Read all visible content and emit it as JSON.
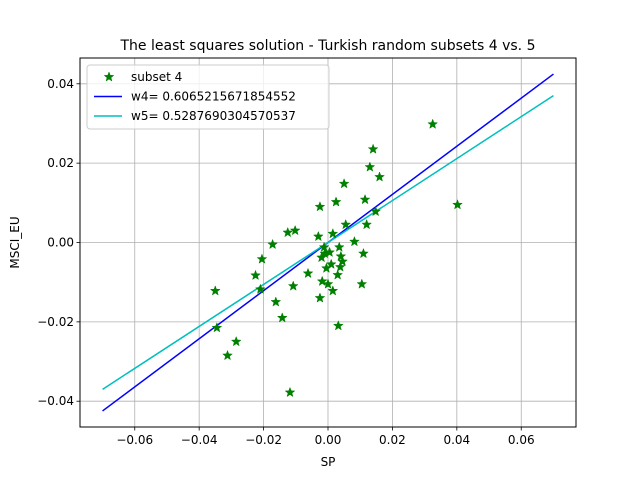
{
  "chart_data": {
    "type": "scatter",
    "title": "The least squares solution - Turkish random subsets 4 vs. 5",
    "xlabel": "SP",
    "ylabel": "MSCI_EU",
    "xlim": [
      -0.077,
      0.077
    ],
    "ylim": [
      -0.0465,
      0.0465
    ],
    "xticks": [
      -0.06,
      -0.04,
      -0.02,
      0.0,
      0.02,
      0.04,
      0.06
    ],
    "xtick_labels": [
      "−0.06",
      "−0.04",
      "−0.02",
      "0.00",
      "0.02",
      "0.04",
      "0.06"
    ],
    "yticks": [
      -0.04,
      -0.02,
      0.0,
      0.02,
      0.04
    ],
    "ytick_labels": [
      "−0.04",
      "−0.02",
      "0.00",
      "0.02",
      "0.04"
    ],
    "grid": true,
    "legend_position": "upper-left",
    "series": [
      {
        "name": "subset 4",
        "kind": "scatter",
        "marker": "star",
        "color": "#008000",
        "points": [
          [
            -0.035,
            -0.0122
          ],
          [
            -0.0345,
            -0.0215
          ],
          [
            -0.0312,
            -0.0285
          ],
          [
            -0.0285,
            -0.025
          ],
          [
            -0.0225,
            -0.0083
          ],
          [
            -0.021,
            -0.0118
          ],
          [
            -0.0205,
            -0.0042
          ],
          [
            -0.0172,
            -0.0005
          ],
          [
            -0.0162,
            -0.015
          ],
          [
            -0.0142,
            -0.019
          ],
          [
            -0.0125,
            0.0025
          ],
          [
            -0.0118,
            -0.0378
          ],
          [
            -0.0108,
            -0.011
          ],
          [
            -0.0102,
            0.003
          ],
          [
            -0.0062,
            -0.0078
          ],
          [
            -0.003,
            0.0015
          ],
          [
            -0.0025,
            0.009
          ],
          [
            -0.0025,
            -0.014
          ],
          [
            -0.002,
            -0.0038
          ],
          [
            -0.0018,
            -0.0098
          ],
          [
            -0.0012,
            -0.0012
          ],
          [
            -0.001,
            -0.0028
          ],
          [
            -0.0005,
            -0.0065
          ],
          [
            0.0,
            -0.0105
          ],
          [
            0.0005,
            -0.0025
          ],
          [
            0.001,
            -0.0055
          ],
          [
            0.0015,
            0.0022
          ],
          [
            0.0015,
            -0.0122
          ],
          [
            0.0025,
            0.0102
          ],
          [
            0.003,
            -0.0082
          ],
          [
            0.0032,
            -0.021
          ],
          [
            0.0035,
            -0.0012
          ],
          [
            0.0038,
            -0.0062
          ],
          [
            0.004,
            -0.0035
          ],
          [
            0.0045,
            -0.0048
          ],
          [
            0.005,
            0.0148
          ],
          [
            0.0055,
            0.0045
          ],
          [
            0.0082,
            0.0002
          ],
          [
            0.0105,
            -0.0105
          ],
          [
            0.011,
            -0.0028
          ],
          [
            0.0115,
            0.0108
          ],
          [
            0.012,
            0.0045
          ],
          [
            0.013,
            0.019
          ],
          [
            0.014,
            0.0235
          ],
          [
            0.0148,
            0.0078
          ],
          [
            0.016,
            0.0165
          ],
          [
            0.0325,
            0.0298
          ],
          [
            0.0402,
            0.0095
          ]
        ]
      },
      {
        "name": "w4= 0.6065215671854552",
        "kind": "line",
        "color": "#0000ff",
        "slope": 0.6065215671854552,
        "x": [
          -0.07,
          0.07
        ]
      },
      {
        "name": "w5= 0.5287690304570537",
        "kind": "line",
        "color": "#00bfbf",
        "slope": 0.5287690304570537,
        "x": [
          -0.07,
          0.07
        ]
      }
    ]
  }
}
